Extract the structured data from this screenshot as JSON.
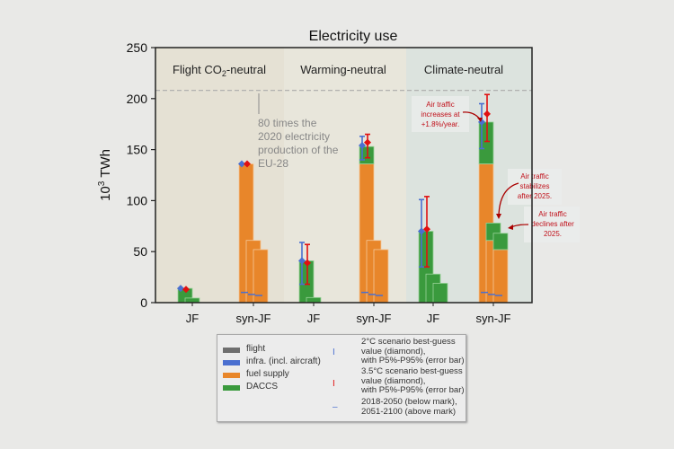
{
  "chart_data": {
    "type": "bar",
    "title": "Electricity use",
    "ylabel": "10^3 TWh",
    "ylabel_base": "10",
    "ylabel_exp": "3",
    "ylabel_unit": "TWh",
    "ylim": [
      0,
      250
    ],
    "yticks": [
      "0",
      "50",
      "100",
      "150",
      "200",
      "250"
    ],
    "categories": [
      "JF",
      "syn-JF",
      "JF",
      "syn-JF",
      "JF",
      "syn-JF"
    ],
    "panels": [
      {
        "label_pre": "Flight CO",
        "label_sub": "2",
        "label_post": "-neutral",
        "color": "#e5e1d4"
      },
      {
        "label_pre": "Warming-neutral",
        "label_sub": "",
        "label_post": "",
        "color": "#e8e6db"
      },
      {
        "label_pre": "Climate-neutral",
        "label_sub": "",
        "label_post": "",
        "color": "#dce3de"
      }
    ],
    "reference_line": {
      "value": 208,
      "text": [
        "80 times the",
        "2020 electricity",
        "production of the",
        "EU-28"
      ]
    },
    "series_colors": {
      "flight": "#6e6e6e",
      "infra": "#4a6fd0",
      "fuel supply": "#e8862a",
      "DACCS": "#3a9a3d"
    },
    "bars": [
      [
        {
          "fuel": 0,
          "daccs": 14
        },
        {
          "fuel": 0,
          "daccs": 4.5
        },
        {
          "fuel": 0,
          "daccs": 0
        }
      ],
      [
        {
          "fuel": 136,
          "daccs": 0
        },
        {
          "fuel": 61,
          "daccs": 0
        },
        {
          "fuel": 52,
          "daccs": 0
        }
      ],
      [
        {
          "fuel": 0,
          "daccs": 41
        },
        {
          "fuel": 0,
          "daccs": 5
        },
        {
          "fuel": 0,
          "daccs": 0
        }
      ],
      [
        {
          "fuel": 136,
          "daccs": 17
        },
        {
          "fuel": 61,
          "daccs": 0
        },
        {
          "fuel": 52,
          "daccs": 0
        }
      ],
      [
        {
          "fuel": 0,
          "daccs": 70
        },
        {
          "fuel": 0,
          "daccs": 28
        },
        {
          "fuel": 0,
          "daccs": 19
        }
      ],
      [
        {
          "fuel": 136,
          "daccs": 41
        },
        {
          "fuel": 61,
          "daccs": 17
        },
        {
          "fuel": 52,
          "daccs": 16
        }
      ]
    ],
    "scenario_2C": [
      {
        "value": 14,
        "low": 14,
        "high": 14
      },
      {
        "value": 136,
        "low": 136,
        "high": 136
      },
      {
        "value": 41,
        "low": 18,
        "high": 59
      },
      {
        "value": 154,
        "low": 140,
        "high": 163
      },
      {
        "value": 70,
        "low": 35,
        "high": 101
      },
      {
        "value": 177,
        "low": 151,
        "high": 195
      }
    ],
    "scenario_3_5C": [
      {
        "value": 13,
        "low": 13,
        "high": 13
      },
      {
        "value": 136,
        "low": 136,
        "high": 136
      },
      {
        "value": 39,
        "low": 18,
        "high": 57
      },
      {
        "value": 157,
        "low": 142,
        "high": 165
      },
      {
        "value": 72,
        "low": 35,
        "high": 104
      },
      {
        "value": 185,
        "low": 158,
        "high": 204
      }
    ],
    "period_marks": [
      null,
      [
        10,
        8,
        7
      ],
      null,
      [
        10,
        8,
        7
      ],
      null,
      [
        10,
        8,
        7
      ]
    ],
    "annotations": [
      {
        "lines": [
          "Air traffic",
          "increases at",
          "+1.8%/year."
        ],
        "color": "#c0101a"
      },
      {
        "lines": [
          "Air traffic",
          "stabilizes",
          "after 2025."
        ],
        "color": "#c0101a"
      },
      {
        "lines": [
          "Air traffic",
          "declines after",
          "2025."
        ],
        "color": "#c0101a"
      }
    ],
    "legend": {
      "position": "bottom",
      "items": [
        "flight",
        "infra. (incl. aircraft)",
        "fuel supply",
        "DACCS"
      ],
      "scenario_2C": [
        "2°C scenario best-guess",
        "value (diamond),",
        "with P5%-P95% (error bar)"
      ],
      "scenario_3_5C": [
        "3.5°C scenario best-guess",
        "value (diamond),",
        "with P5%-P95% (error bar)"
      ],
      "period": [
        "2018-2050 (below mark),",
        "2051-2100 (above mark)"
      ]
    }
  }
}
